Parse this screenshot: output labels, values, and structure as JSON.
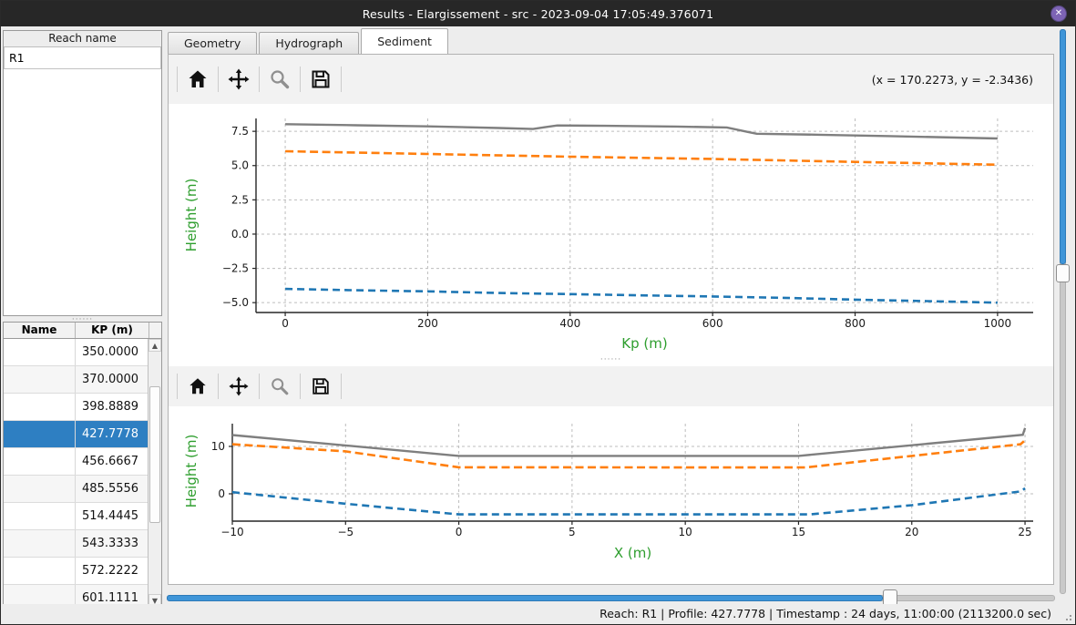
{
  "window": {
    "title": "Results - Elargissement - src - 2023-09-04 17:05:49.376071",
    "close_label": "✕"
  },
  "sidebar": {
    "reach_panel": {
      "header": "Reach name",
      "items": [
        "R1"
      ]
    },
    "profile_table": {
      "columns": [
        "Name",
        "KP (m)"
      ],
      "rows": [
        "350.0000",
        "370.0000",
        "398.8889",
        "427.7778",
        "456.6667",
        "485.5556",
        "514.4445",
        "543.3333",
        "572.2222",
        "601.1111"
      ],
      "selected_index": 3,
      "selected_color": "#2e7fc2"
    }
  },
  "tabs": [
    {
      "label": "Geometry",
      "active": false
    },
    {
      "label": "Hydrograph",
      "active": false
    },
    {
      "label": "Sediment",
      "active": true
    }
  ],
  "toolbar": {
    "icons": [
      "home-icon",
      "pan-icon",
      "zoom-icon",
      "save-icon"
    ],
    "coordinates": "(x = 170.2273,  y = -2.3436)"
  },
  "statusbar": {
    "text": "Reach: R1 | Profile: 427.7778 | Timestamp : 24 days, 11:00:00 (2113200.0 sec)"
  },
  "sliders": {
    "horizontal_fill_pct": 82,
    "vertical_fill_pct": 43
  },
  "colors": {
    "axis_label_green": "#2e9e2e",
    "series_gray": "#7f7f7f",
    "series_orange": "#ff7f0e",
    "series_blue": "#1f77b4",
    "selection_blue": "#2e7fc2"
  },
  "chart_data": [
    {
      "type": "line",
      "title": "",
      "xlabel": "Kp (m)",
      "ylabel": "Height (m)",
      "xlim": [
        -41,
        1050
      ],
      "ylim": [
        -5.72,
        8.44
      ],
      "grid": true,
      "legend": null,
      "xtick_values": [
        0,
        200,
        400,
        600,
        800,
        1000
      ],
      "xtick_labels": [
        "0",
        "200",
        "400",
        "600",
        "800",
        "1000"
      ],
      "ytick_values": [
        7.5,
        5.0,
        2.5,
        0.0,
        -2.5,
        -5.0
      ],
      "ytick_labels": [
        "7.5",
        "5.0",
        "2.5",
        "0.0",
        "−2.5",
        "−5.0"
      ],
      "series": [
        {
          "name": "gray-solid-line",
          "color": "#7f7f7f",
          "width": 2.4,
          "dash": null,
          "points": [
            [
              0,
              8.02
            ],
            [
              100,
              7.94
            ],
            [
              200,
              7.86
            ],
            [
              300,
              7.74
            ],
            [
              348,
              7.67
            ],
            [
              365,
              7.8
            ],
            [
              382,
              7.93
            ],
            [
              450,
              7.9
            ],
            [
              550,
              7.85
            ],
            [
              620,
              7.78
            ],
            [
              650,
              7.45
            ],
            [
              662,
              7.32
            ],
            [
              750,
              7.25
            ],
            [
              850,
              7.15
            ],
            [
              1000,
              6.98
            ]
          ]
        },
        {
          "name": "orange-dashed-line",
          "color": "#ff7f0e",
          "width": 2.6,
          "dash": "9 4.5",
          "points": [
            [
              0,
              6.05
            ],
            [
              200,
              5.85
            ],
            [
              400,
              5.65
            ],
            [
              600,
              5.48
            ],
            [
              800,
              5.27
            ],
            [
              1000,
              5.06
            ]
          ]
        },
        {
          "name": "blue-dashed-line",
          "color": "#1f77b4",
          "width": 2.6,
          "dash": "8 5",
          "points": [
            [
              0,
              -4.0
            ],
            [
              100,
              -4.1
            ],
            [
              200,
              -4.18
            ],
            [
              300,
              -4.3
            ],
            [
              400,
              -4.38
            ],
            [
              500,
              -4.47
            ],
            [
              600,
              -4.55
            ],
            [
              700,
              -4.65
            ],
            [
              800,
              -4.78
            ],
            [
              900,
              -4.89
            ],
            [
              1000,
              -5.0
            ]
          ]
        }
      ]
    },
    {
      "type": "line",
      "title": "",
      "xlabel": "X (m)",
      "ylabel": "Height (m)",
      "xlim": [
        -10,
        25.36
      ],
      "ylim": [
        -5.77,
        14.8
      ],
      "grid": true,
      "legend": null,
      "xtick_values": [
        -10,
        -5,
        0,
        5,
        10,
        15,
        20,
        25
      ],
      "xtick_labels": [
        "−10",
        "−5",
        "0",
        "5",
        "10",
        "15",
        "20",
        "25"
      ],
      "ytick_values": [
        10,
        0
      ],
      "ytick_labels": [
        "10",
        "0"
      ],
      "series": [
        {
          "name": "gray-solid-line",
          "color": "#7f7f7f",
          "width": 2.4,
          "dash": null,
          "points": [
            [
              -10,
              12.4
            ],
            [
              0,
              8.0
            ],
            [
              15,
              8.0
            ],
            [
              24.9,
              12.45
            ],
            [
              25,
              13.9
            ]
          ]
        },
        {
          "name": "orange-dashed-line",
          "color": "#ff7f0e",
          "width": 2.6,
          "dash": "9 4.5",
          "points": [
            [
              -10,
              10.45
            ],
            [
              -5,
              8.95
            ],
            [
              0,
              5.6
            ],
            [
              15.3,
              5.55
            ],
            [
              20,
              8.0
            ],
            [
              24.8,
              10.45
            ],
            [
              25,
              11.3
            ]
          ]
        },
        {
          "name": "blue-dashed-line",
          "color": "#1f77b4",
          "width": 2.6,
          "dash": "8 5",
          "points": [
            [
              -10,
              0.35
            ],
            [
              -5,
              -2.1
            ],
            [
              0,
              -4.35
            ],
            [
              15.5,
              -4.35
            ],
            [
              20,
              -2.4
            ],
            [
              24.8,
              0.5
            ],
            [
              25,
              1.15
            ]
          ]
        }
      ]
    }
  ]
}
